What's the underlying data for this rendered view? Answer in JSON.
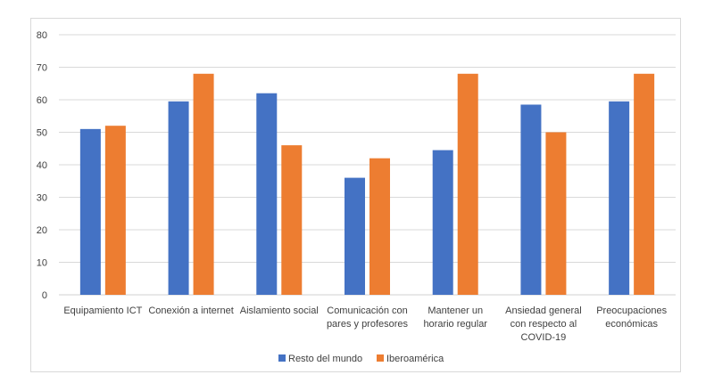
{
  "chart_data": {
    "type": "bar",
    "title": "",
    "xlabel": "",
    "ylabel": "",
    "ylim": [
      0,
      80
    ],
    "yticks": [
      "0",
      "10",
      "20",
      "30",
      "40",
      "50",
      "60",
      "70",
      "80"
    ],
    "grid": true,
    "legend_position": "bottom",
    "categories": [
      [
        "Equipamiento ICT"
      ],
      [
        "Conexión a internet"
      ],
      [
        "Aislamiento social"
      ],
      [
        "Comunicación con",
        "pares y profesores"
      ],
      [
        "Mantener un",
        "horario regular"
      ],
      [
        "Ansiedad general",
        "con respecto al",
        "COVID-19"
      ],
      [
        "Preocupaciones",
        "económicas"
      ]
    ],
    "series": [
      {
        "name": "Resto del mundo",
        "color": "#4472c4",
        "values": [
          51,
          59.5,
          62,
          36,
          44.5,
          58.5,
          59.5
        ]
      },
      {
        "name": "Iberoamérica",
        "color": "#ed7d31",
        "values": [
          52,
          68,
          46,
          42,
          68,
          50,
          68
        ]
      }
    ]
  }
}
